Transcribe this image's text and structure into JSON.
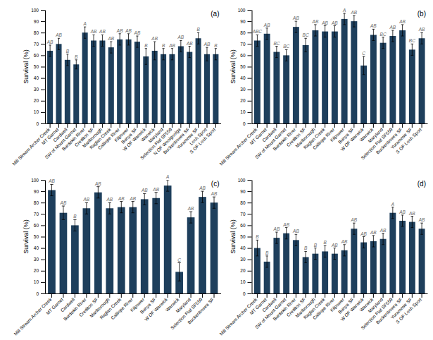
{
  "chart_data": [
    {
      "type": "bar",
      "title": "(a)",
      "y_label": "Survival (%)",
      "color": "#1e3f5c",
      "grid": false,
      "categories": [
        "Mill Stream Archer Creek",
        "MT Garnet",
        "Cardwell",
        "SW of Mount Garnet",
        "Burdekin River",
        "Crediton SF",
        "Marlborough",
        "Raglan Creek",
        "Calliope River",
        "Kilpower",
        "Bunya SF",
        "W OF Warwick",
        "Warwick",
        "Maryland",
        "Selection Flat SF559",
        "N OF Woolgoolga",
        "Buckenbowra SF",
        "Yurammie SF",
        "Loch Sport",
        "S OF Loch Sport"
      ],
      "values": [
        64,
        70,
        56,
        52,
        80,
        73,
        73,
        67,
        74,
        74,
        72,
        59,
        64,
        61,
        61,
        68,
        63,
        75,
        61,
        61
      ],
      "errors": [
        5,
        5,
        5,
        4,
        5,
        5,
        5,
        5,
        5,
        5,
        5,
        7,
        8,
        5,
        5,
        5,
        5,
        5,
        6,
        5
      ],
      "annotations": [
        "AB",
        "AB",
        "B",
        "B",
        "A",
        "AB",
        "AB",
        "AB",
        "AB",
        "AB",
        "AB",
        "B",
        "AB",
        "B",
        "AB",
        "AB",
        "AB",
        "B",
        "AB",
        "B"
      ],
      "ylim": [
        0,
        100
      ],
      "yticks": [
        0,
        10,
        20,
        30,
        40,
        50,
        60,
        70,
        80,
        90,
        100
      ]
    },
    {
      "type": "bar",
      "title": "(b)",
      "y_label": "Survival (%)",
      "color": "#1e3f5c",
      "grid": false,
      "categories": [
        "Mill Stream Archer Creek",
        "MT Garnet",
        "Cardwell",
        "SW of Mount Garnet",
        "Burdekin River",
        "Crediton SF",
        "Marlborough",
        "Raglan Creek",
        "Calliope River",
        "Kilpower",
        "Bunya SF",
        "W OF Warwick",
        "Warwick",
        "Maryland",
        "Selection Flat SF559",
        "Buckenbowra SF",
        "Yurammie SF",
        "S OF Loch Sport"
      ],
      "values": [
        73,
        79,
        63,
        60,
        85,
        69,
        82,
        81,
        81,
        92,
        90,
        51,
        78,
        71,
        77,
        82,
        65,
        75
      ],
      "errors": [
        5,
        5,
        5,
        5,
        5,
        6,
        5,
        5,
        5,
        5,
        5,
        8,
        5,
        5,
        5,
        5,
        5,
        5
      ],
      "annotations": [
        "ABC",
        "AB",
        "BC",
        "BC",
        "AB",
        "BC",
        "AB",
        "AB",
        "AB",
        "A",
        "AB",
        "C",
        "AB",
        "BC",
        "AB",
        "AB",
        "BC",
        "AB"
      ],
      "ylim": [
        0,
        100
      ],
      "yticks": [
        0,
        10,
        20,
        30,
        40,
        50,
        60,
        70,
        80,
        90,
        100
      ]
    },
    {
      "type": "bar",
      "title": "(c)",
      "y_label": "Survival (%)",
      "color": "#1e3f5c",
      "grid": false,
      "categories": [
        "Mill Stream Archer Creek",
        "MT Garnet",
        "Cardwell",
        "Burdekin River",
        "Crediton SF",
        "Marlborough",
        "Raglan Creek",
        "Calliope River",
        "Kilpower",
        "Bunya SF",
        "W OF Warwick",
        "Warwick",
        "Maryland",
        "Selection Flat SF559",
        "Buckenbowra SF"
      ],
      "values": [
        91,
        71,
        60,
        75,
        89,
        75,
        76,
        76,
        83,
        84,
        95,
        19,
        67,
        85,
        80
      ],
      "errors": [
        5,
        6,
        5,
        5,
        5,
        5,
        5,
        5,
        5,
        5,
        5,
        8,
        5,
        5,
        5
      ],
      "annotations": [
        "AB",
        "AB",
        "B",
        "AB",
        "AB",
        "AB",
        "AB",
        "AB",
        "AB",
        "AB",
        "A",
        "C",
        "AB",
        "AB",
        "AB"
      ],
      "ylim": [
        0,
        100
      ],
      "yticks": [
        0,
        10,
        20,
        30,
        40,
        50,
        60,
        70,
        80,
        90,
        100
      ]
    },
    {
      "type": "bar",
      "title": "(d)",
      "y_label": "Survival (%)",
      "color": "#1e3f5c",
      "grid": false,
      "categories": [
        "Mill Stream Archer Creek",
        "MT Garnet",
        "Cardwell",
        "SW of Mount Garnet",
        "Burdekin River",
        "Crediton SF",
        "Marlborough",
        "Raglan Creek",
        "Calliope River",
        "Kilpower",
        "Bunya SF",
        "W OF Warwick",
        "Warwick",
        "Maryland",
        "Selection Flat SF559",
        "Buckenbowra SF",
        "Yurammie SF",
        "S OF Loch Sport"
      ],
      "values": [
        40,
        28,
        49,
        53,
        47,
        32,
        35,
        37,
        35,
        38,
        57,
        45,
        46,
        48,
        71,
        64,
        63,
        57
      ],
      "errors": [
        7,
        5,
        5,
        5,
        5,
        5,
        5,
        5,
        5,
        5,
        5,
        5,
        5,
        5,
        5,
        5,
        5,
        5
      ],
      "annotations": [
        "B",
        "B",
        "AB",
        "AB",
        "AB",
        "B",
        "B",
        "B",
        "AB",
        "AB",
        "AB",
        "AB",
        "AB",
        "AB",
        "A",
        "AB",
        "AB",
        "AB"
      ],
      "ylim": [
        0,
        100
      ],
      "yticks": [
        0,
        10,
        20,
        30,
        40,
        50,
        60,
        70,
        80,
        90,
        100
      ]
    }
  ]
}
